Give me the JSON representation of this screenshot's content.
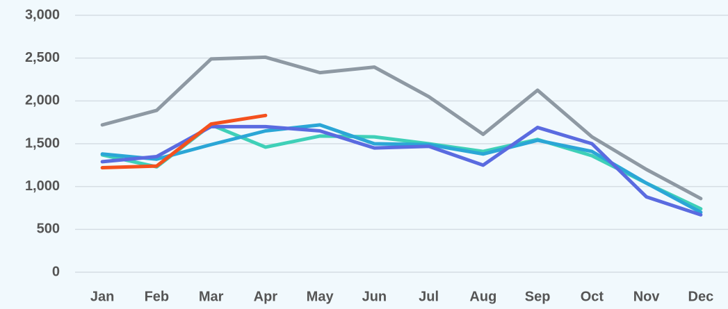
{
  "chart_data": {
    "type": "line",
    "categories": [
      "Jan",
      "Feb",
      "Mar",
      "Apr",
      "May",
      "Jun",
      "Jul",
      "Aug",
      "Sep",
      "Oct",
      "Nov",
      "Dec"
    ],
    "series": [
      {
        "color": "#8e99a3",
        "values": [
          1720,
          1890,
          2490,
          2510,
          2330,
          2395,
          2050,
          1610,
          2125,
          1580,
          1200,
          860
        ]
      },
      {
        "color": "#3fd0b8",
        "values": [
          1370,
          1230,
          1720,
          1460,
          1590,
          1580,
          1500,
          1410,
          1550,
          1360,
          1040,
          740
        ]
      },
      {
        "color": "#2ba6d6",
        "values": [
          1380,
          1320,
          1490,
          1650,
          1720,
          1500,
          1490,
          1380,
          1540,
          1410,
          1040,
          700
        ]
      },
      {
        "color": "#5a6be0",
        "values": [
          1290,
          1350,
          1700,
          1700,
          1650,
          1450,
          1470,
          1250,
          1690,
          1500,
          880,
          670
        ]
      },
      {
        "color": "#f4511e",
        "values": [
          1220,
          1240,
          1730,
          1830,
          null,
          null,
          null,
          null,
          null,
          null,
          null,
          null
        ]
      }
    ],
    "ylim": [
      0,
      3000
    ],
    "yticks": [
      0,
      500,
      {
        "value": 1000,
        "label": "1,000"
      },
      {
        "value": 1500,
        "label": "1,500"
      },
      {
        "value": 2000,
        "label": "2,000"
      },
      {
        "value": 2500,
        "label": "2,500"
      },
      {
        "value": 3000,
        "label": "3,000"
      }
    ],
    "grid": true
  }
}
